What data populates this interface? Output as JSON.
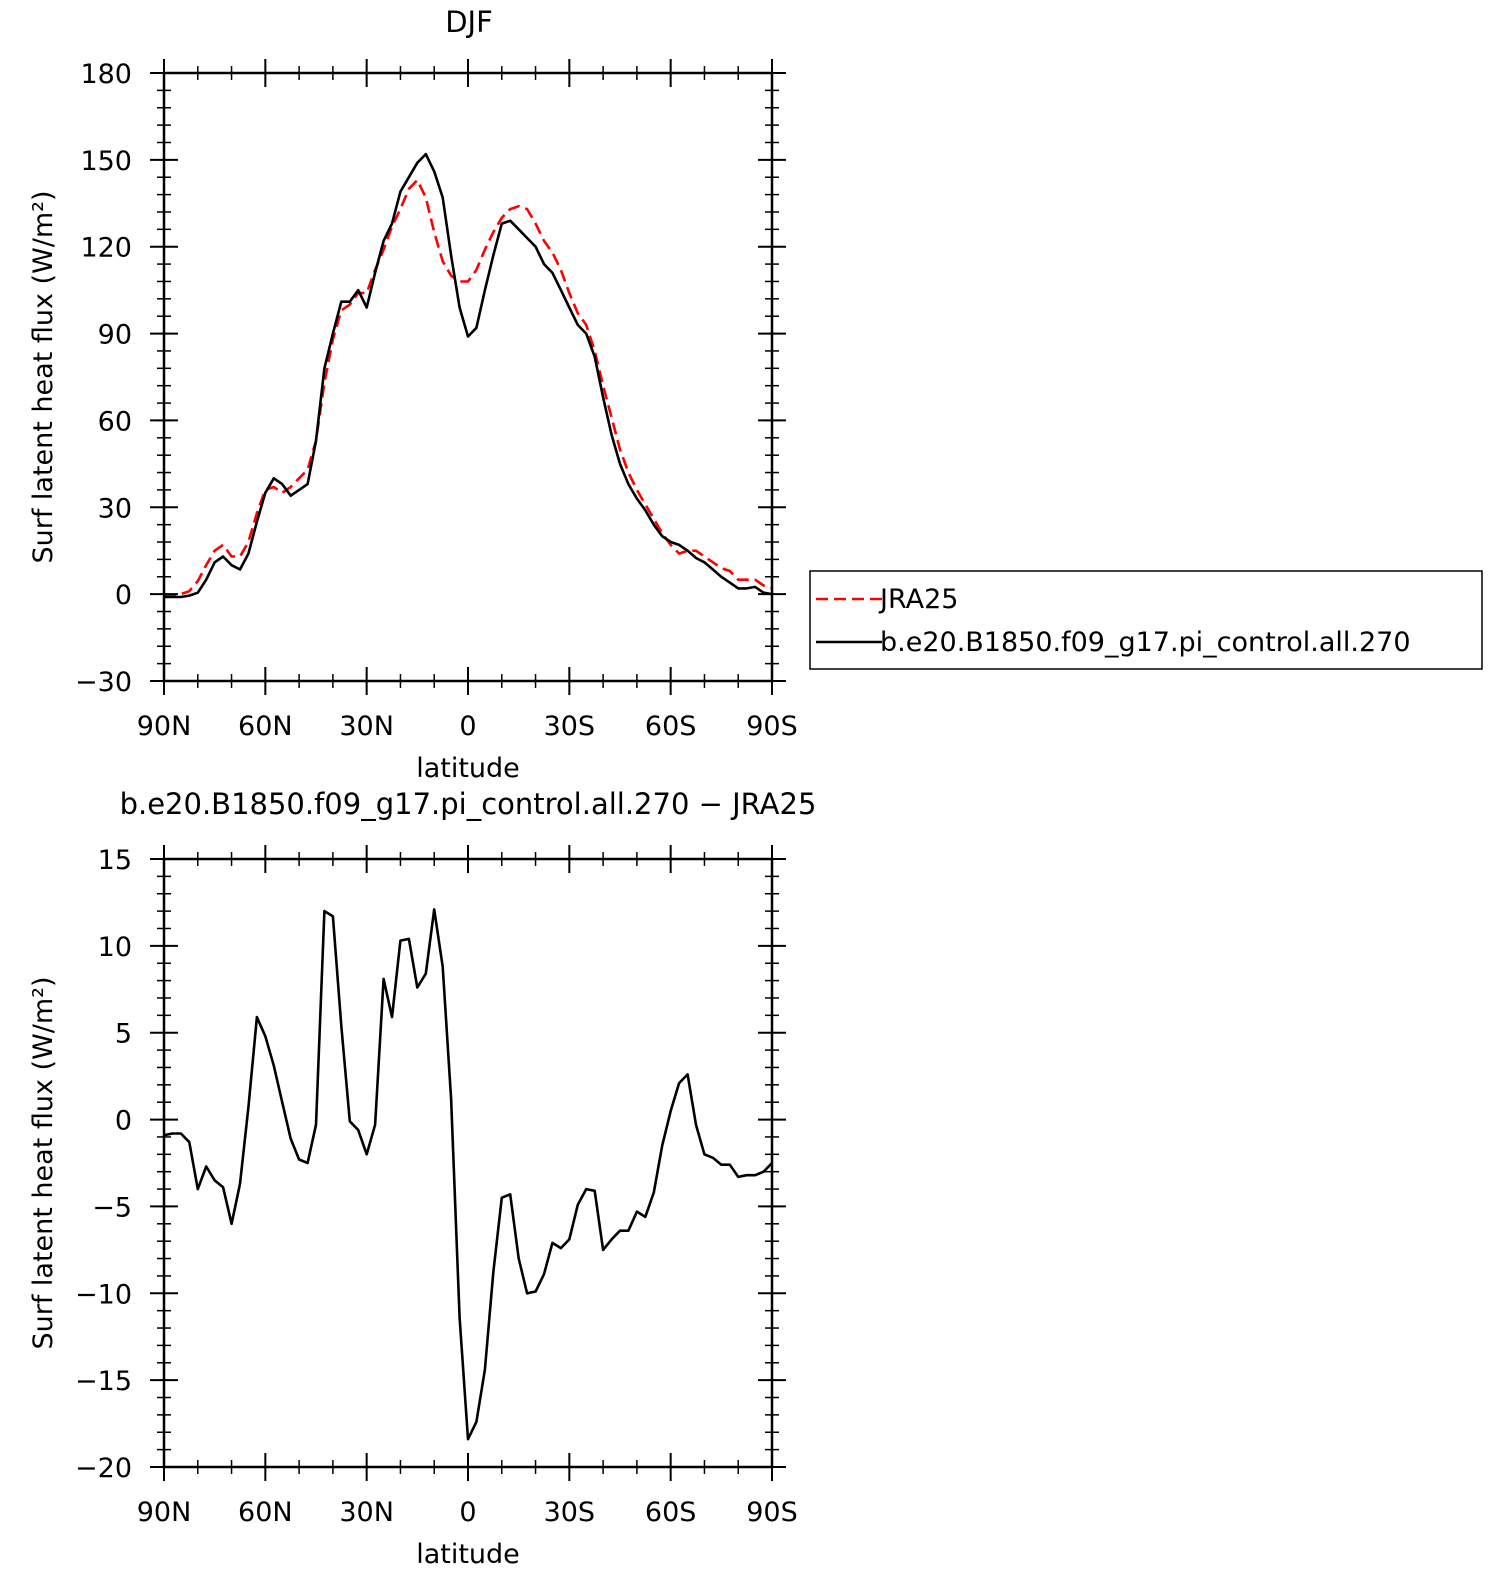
{
  "chart_data": [
    {
      "type": "line",
      "title": "DJF",
      "xlabel": "latitude",
      "ylabel": "Surf latent heat flux (W/m²)",
      "ylim": [
        -30,
        180
      ],
      "yticks": [
        -30,
        0,
        30,
        60,
        90,
        120,
        150,
        180
      ],
      "ytick_labels": [
        "−30",
        "0",
        "30",
        "60",
        "90",
        "120",
        "150",
        "180"
      ],
      "xticks": [
        90,
        60,
        30,
        0,
        -30,
        -60,
        -90
      ],
      "xtick_labels": [
        "90N",
        "60N",
        "30N",
        "0",
        "30S",
        "60S",
        "90S"
      ],
      "xlim": [
        90,
        -90
      ],
      "grid": false,
      "legend_position": "right",
      "series": [
        {
          "name": "JRA25",
          "color": "#ff0000",
          "style": "dashed",
          "x": [
            90,
            87.5,
            85,
            82.5,
            80,
            77.5,
            75,
            72.5,
            70,
            67.5,
            65,
            62.5,
            60,
            57.5,
            55,
            52.5,
            50,
            47.5,
            45,
            42.5,
            40,
            37.5,
            35,
            32.5,
            30,
            27.5,
            25,
            22.5,
            20,
            17.5,
            15,
            12.5,
            10,
            7.5,
            5,
            2.5,
            0,
            -2.5,
            -5,
            -7.5,
            -10,
            -12.5,
            -15,
            -17.5,
            -20,
            -22.5,
            -25,
            -27.5,
            -30,
            -32.5,
            -35,
            -37.5,
            -40,
            -42.5,
            -45,
            -47.5,
            -50,
            -52.5,
            -55,
            -57.5,
            -60,
            -62.5,
            -65,
            -67.5,
            -70,
            -72.5,
            -75,
            -77.5,
            -80,
            -82.5,
            -85,
            -87.5,
            -90
          ],
          "y": [
            -0.5,
            -0.5,
            0,
            1,
            4.5,
            10,
            15,
            17,
            13,
            13,
            18,
            28,
            36,
            37,
            35,
            37,
            40,
            43,
            53,
            73,
            88,
            98,
            100,
            104,
            104,
            112,
            119,
            127,
            133,
            140,
            143,
            137,
            125,
            115,
            110,
            108,
            108,
            112,
            119,
            125,
            130,
            133,
            134,
            133,
            128,
            122,
            118,
            112,
            104,
            97,
            93,
            84,
            72,
            61,
            50,
            42,
            36,
            31,
            26,
            21,
            17,
            14,
            15,
            15,
            13,
            11,
            9,
            8,
            5,
            5,
            5,
            3,
            2
          ]
        },
        {
          "name": "b.e20.B1850.f09_g17.pi_control.all.270",
          "color": "#000000",
          "style": "solid",
          "x": [
            90,
            87.5,
            85,
            82.5,
            80,
            77.5,
            75,
            72.5,
            70,
            67.5,
            65,
            62.5,
            60,
            57.5,
            55,
            52.5,
            50,
            47.5,
            45,
            42.5,
            40,
            37.5,
            35,
            32.5,
            30,
            27.5,
            25,
            22.5,
            20,
            17.5,
            15,
            12.5,
            10,
            7.5,
            5,
            2.5,
            0,
            -2.5,
            -5,
            -7.5,
            -10,
            -12.5,
            -15,
            -17.5,
            -20,
            -22.5,
            -25,
            -27.5,
            -30,
            -32.5,
            -35,
            -37.5,
            -40,
            -42.5,
            -45,
            -47.5,
            -50,
            -52.5,
            -55,
            -57.5,
            -60,
            -62.5,
            -65,
            -67.5,
            -70,
            -72.5,
            -75,
            -77.5,
            -80,
            -82.5,
            -85,
            -87.5,
            -90
          ],
          "y": [
            -1,
            -1,
            -1,
            -0.5,
            0.5,
            5,
            11,
            13,
            10,
            8.5,
            14,
            25,
            35,
            40,
            38,
            34,
            36,
            38,
            53,
            78,
            90,
            101,
            101,
            105,
            99,
            111,
            122,
            128,
            139,
            144,
            149,
            152,
            146,
            137,
            117,
            99,
            89,
            92,
            105,
            117,
            128,
            129,
            126,
            123,
            120,
            114,
            111,
            105,
            99,
            93,
            90,
            82,
            68,
            55,
            45,
            38,
            33,
            29,
            24,
            20,
            18,
            17,
            15,
            12.5,
            11,
            8.5,
            6,
            4,
            2,
            2,
            2.5,
            0.5,
            0
          ]
        }
      ]
    },
    {
      "type": "line",
      "title": "b.e20.B1850.f09_g17.pi_control.all.270 − JRA25",
      "xlabel": "latitude",
      "ylabel": "Surf latent heat flux (W/m²)",
      "ylim": [
        -20,
        15
      ],
      "yticks": [
        -20,
        -15,
        -10,
        -5,
        0,
        5,
        10,
        15
      ],
      "ytick_labels": [
        "−20",
        "−15",
        "−10",
        "−5",
        "0",
        "5",
        "10",
        "15"
      ],
      "xticks": [
        90,
        60,
        30,
        0,
        -30,
        -60,
        -90
      ],
      "xtick_labels": [
        "90N",
        "60N",
        "30N",
        "0",
        "30S",
        "60S",
        "90S"
      ],
      "xlim": [
        90,
        -90
      ],
      "grid": false,
      "series": [
        {
          "color": "#000000",
          "style": "solid",
          "x": [
            90,
            87.5,
            85,
            82.5,
            80,
            77.5,
            75,
            72.5,
            70,
            67.5,
            65,
            62.5,
            60,
            57.5,
            55,
            52.5,
            50,
            47.5,
            45,
            42.5,
            40,
            37.5,
            35,
            32.5,
            30,
            27.5,
            25,
            22.5,
            20,
            17.5,
            15,
            12.5,
            10,
            7.5,
            5,
            2.5,
            0,
            -2.5,
            -5,
            -7.5,
            -10,
            -12.5,
            -15,
            -17.5,
            -20,
            -22.5,
            -25,
            -27.5,
            -30,
            -32.5,
            -35,
            -37.5,
            -40,
            -42.5,
            -45,
            -47.5,
            -50,
            -52.5,
            -55,
            -57.5,
            -60,
            -62.5,
            -65,
            -67.5,
            -70,
            -72.5,
            -75,
            -77.5,
            -80,
            -82.5,
            -85,
            -87.5,
            -90
          ],
          "y": [
            -0.9,
            -0.8,
            -0.8,
            -1.3,
            -4,
            -2.7,
            -3.5,
            -3.9,
            -6,
            -3.7,
            0.7,
            5.9,
            4.8,
            3.1,
            1,
            -1.1,
            -2.3,
            -2.5,
            -0.3,
            12,
            11.7,
            5.4,
            -0.1,
            -0.6,
            -2,
            -0.3,
            8.1,
            5.9,
            10.3,
            10.4,
            7.6,
            8.4,
            12.1,
            8.8,
            1.2,
            -11.4,
            -18.4,
            -17.4,
            -14.4,
            -8.8,
            -4.5,
            -4.3,
            -8,
            -10,
            -9.9,
            -8.9,
            -7.1,
            -7.4,
            -6.9,
            -4.9,
            -4,
            -4.1,
            -7.5,
            -6.9,
            -6.4,
            -6.4,
            -5.3,
            -5.6,
            -4.2,
            -1.5,
            0.5,
            2.1,
            2.6,
            -0.3,
            -2,
            -2.2,
            -2.6,
            -2.6,
            -3.3,
            -3.2,
            -3.2,
            -3,
            -2.5
          ]
        }
      ]
    }
  ]
}
